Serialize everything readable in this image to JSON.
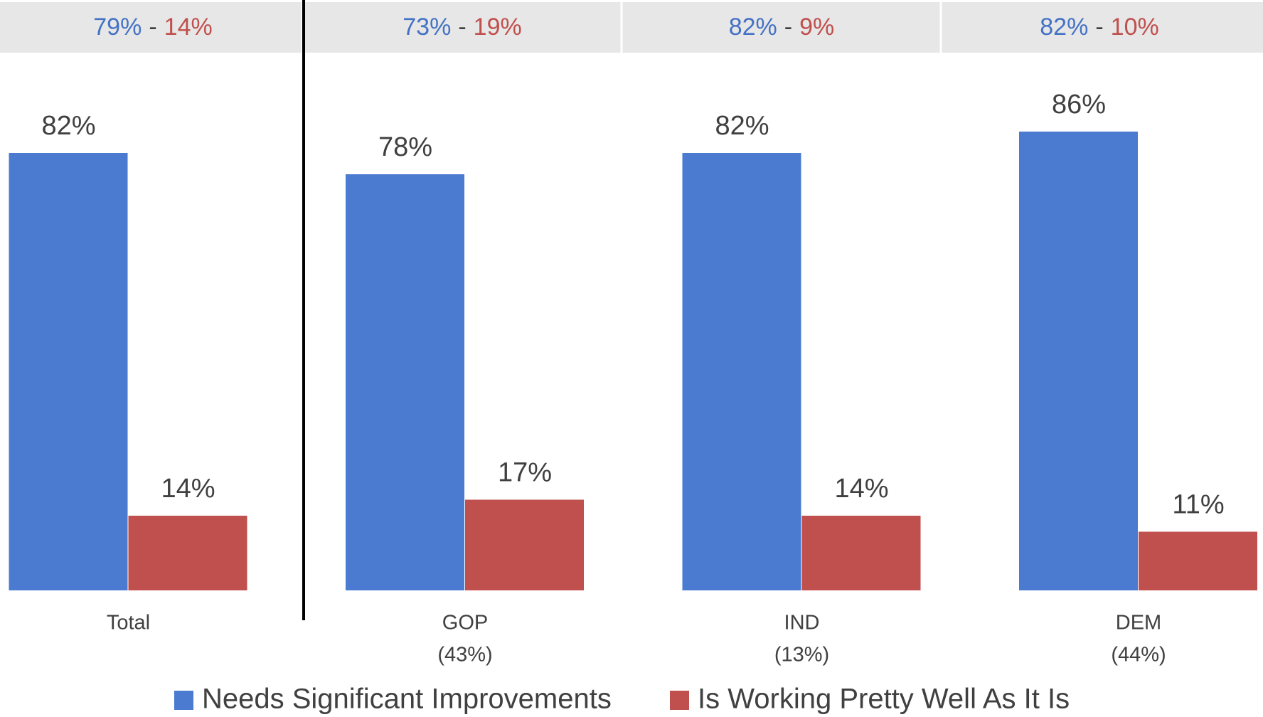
{
  "chart_data": {
    "type": "bar",
    "categories": [
      "Total",
      "GOP",
      "IND",
      "DEM"
    ],
    "category_notes": [
      null,
      "(43%)",
      "(13%)",
      "(44%)"
    ],
    "comparisons": [
      {
        "needs": "79%",
        "working": "14%"
      },
      {
        "needs": "73%",
        "working": "19%"
      },
      {
        "needs": "82%",
        "working": "9%"
      },
      {
        "needs": "82%",
        "working": "10%"
      }
    ],
    "comparison_separator": "-",
    "series": [
      {
        "name": "Needs Significant Improvements",
        "color": "#4a7bd0",
        "values": [
          82,
          78,
          82,
          86
        ],
        "value_labels": [
          "82%",
          "78%",
          "82%",
          "86%"
        ]
      },
      {
        "name": "Is Working Pretty Well As It Is",
        "color": "#c0504d",
        "values": [
          14,
          17,
          14,
          11
        ],
        "value_labels": [
          "14%",
          "17%",
          "14%",
          "11%"
        ]
      }
    ],
    "ylim": [
      0,
      100
    ],
    "legend": "bottom"
  }
}
